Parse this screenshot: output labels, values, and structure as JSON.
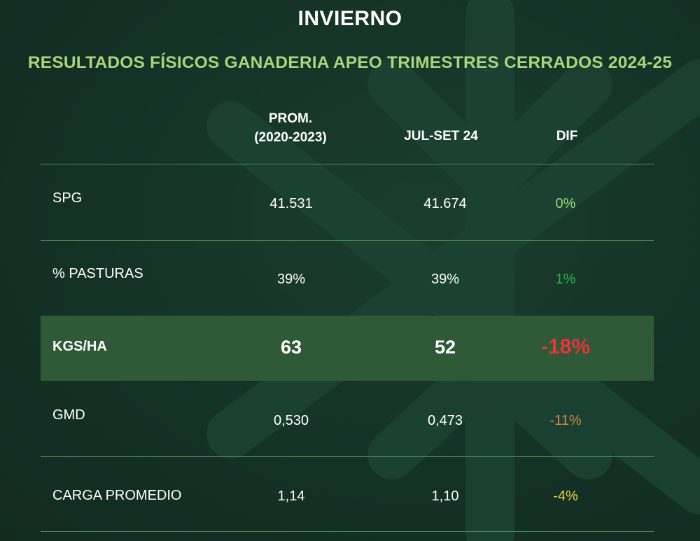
{
  "title": "INVIERNO",
  "subtitle": "RESULTADOS FÍSICOS GANADERIA APEO TRIMESTRES CERRADOS 2024-25",
  "table": {
    "headers": {
      "col1": "PROM.",
      "col1_sub": "(2020-2023)",
      "col2": "JUL-SET 24",
      "col3": "DIF"
    },
    "rows": [
      {
        "label": "SPG",
        "prom": "41.531",
        "jul": "41.674",
        "dif": "0%",
        "dif_color": "#9ed67a"
      },
      {
        "label": "% PASTURAS",
        "prom": "39%",
        "jul": "39%",
        "dif": "1%",
        "dif_color": "#2fb34a"
      },
      {
        "label": "KGS/HA",
        "prom": "63",
        "jul": "52",
        "dif": "-18%",
        "dif_color": "#e8343a",
        "highlight": true
      },
      {
        "label": "GMD",
        "prom": "0,530",
        "jul": "0,473",
        "dif": "-11%",
        "dif_color": "#d9854a"
      },
      {
        "label": "CARGA PROMEDIO",
        "prom": "1,14",
        "jul": "1,10",
        "dif": "-4%",
        "dif_color": "#e6d24a"
      }
    ]
  },
  "colors": {
    "background": "#153428",
    "accent": "#a9d67a",
    "divider": "#4d8a55",
    "highlight_row": "#2f5a37"
  }
}
